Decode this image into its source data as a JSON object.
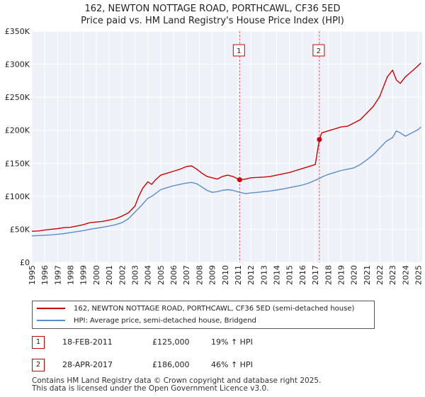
{
  "chart_data": {
    "type": "line",
    "title": "162, NEWTON NOTTAGE ROAD, PORTHCAWL, CF36 5ED",
    "subtitle": "Price paid vs. HM Land Registry's House Price Index (HPI)",
    "xlabel": "",
    "ylabel": "",
    "xlim": [
      1995,
      2025.3
    ],
    "ylim": [
      0,
      350000
    ],
    "x_ticks": [
      1995,
      1996,
      1997,
      1998,
      1999,
      2000,
      2001,
      2002,
      2003,
      2004,
      2005,
      2006,
      2007,
      2008,
      2009,
      2010,
      2011,
      2012,
      2013,
      2014,
      2015,
      2016,
      2017,
      2018,
      2019,
      2020,
      2021,
      2022,
      2023,
      2024,
      2025
    ],
    "x_tick_labels": [
      "1995",
      "1996",
      "1997",
      "1998",
      "1999",
      "2000",
      "2001",
      "2002",
      "2003",
      "2004",
      "2005",
      "2006",
      "2007",
      "2008",
      "2009",
      "2010",
      "2011",
      "2012",
      "2013",
      "2014",
      "2015",
      "2016",
      "2017",
      "2018",
      "2019",
      "2020",
      "2021",
      "2022",
      "2023",
      "2024",
      "2025"
    ],
    "y_ticks": [
      0,
      50000,
      100000,
      150000,
      200000,
      250000,
      300000,
      350000
    ],
    "y_tick_labels": [
      "£0",
      "£50K",
      "£100K",
      "£150K",
      "£200K",
      "£250K",
      "£300K",
      "£350K"
    ],
    "grid": true,
    "series": [
      {
        "name": "162, NEWTON NOTTAGE ROAD, PORTHCAWL, CF36 5ED (semi-detached house)",
        "color": "#cc0000",
        "x": [
          1995,
          1995.5,
          1996,
          1996.5,
          1997,
          1997.5,
          1998,
          1998.5,
          1999,
          1999.5,
          2000,
          2000.5,
          2001,
          2001.5,
          2002,
          2002.5,
          2003,
          2003.3,
          2003.6,
          2004,
          2004.3,
          2004.6,
          2005,
          2005.5,
          2006,
          2006.5,
          2007,
          2007.4,
          2007.8,
          2008.2,
          2008.6,
          2009,
          2009.4,
          2009.8,
          2010.2,
          2010.6,
          2011.13,
          2011.6,
          2012,
          2012.5,
          2013,
          2013.5,
          2014,
          2014.5,
          2015,
          2015.5,
          2016,
          2016.5,
          2017.0,
          2017.32,
          2017.5,
          2018,
          2018.5,
          2019,
          2019.5,
          2020,
          2020.5,
          2021,
          2021.5,
          2022,
          2022.3,
          2022.6,
          2023,
          2023.3,
          2023.6,
          2024,
          2024.3,
          2024.6,
          2025,
          2025.2
        ],
        "y": [
          47000,
          47500,
          49000,
          50000,
          51000,
          52500,
          53000,
          55000,
          57000,
          60000,
          61000,
          62000,
          64000,
          66000,
          70000,
          75000,
          85000,
          100000,
          112000,
          122000,
          118000,
          125000,
          132000,
          135000,
          138000,
          141000,
          145000,
          146000,
          141000,
          135000,
          130000,
          128000,
          126000,
          130000,
          132000,
          130000,
          125000,
          126000,
          128000,
          128500,
          129000,
          130000,
          132000,
          134000,
          136000,
          139000,
          142000,
          145000,
          148000,
          186000,
          196000,
          199000,
          202000,
          205000,
          206000,
          211000,
          216000,
          226000,
          236000,
          251000,
          266000,
          281000,
          291000,
          276000,
          271000,
          281000,
          286000,
          291000,
          298000,
          302000
        ]
      },
      {
        "name": "HPI: Average price, semi-detached house, Bridgend",
        "color": "#5b8dc9",
        "x": [
          1995,
          1995.5,
          1996,
          1996.5,
          1997,
          1997.5,
          1998,
          1998.5,
          1999,
          1999.5,
          2000,
          2000.5,
          2001,
          2001.5,
          2002,
          2002.5,
          2003,
          2003.5,
          2004,
          2004.3,
          2004.6,
          2005,
          2005.5,
          2006,
          2006.5,
          2007,
          2007.4,
          2007.8,
          2008.2,
          2008.6,
          2009,
          2009.4,
          2009.8,
          2010.2,
          2010.6,
          2011.13,
          2011.6,
          2012,
          2012.5,
          2013,
          2013.5,
          2014,
          2014.5,
          2015,
          2015.5,
          2016,
          2016.5,
          2017.32,
          2017.6,
          2018,
          2018.5,
          2019,
          2019.5,
          2020,
          2020.5,
          2021,
          2021.5,
          2022,
          2022.5,
          2023,
          2023.3,
          2023.6,
          2024,
          2024.5,
          2025,
          2025.2
        ],
        "y": [
          40000,
          40500,
          41000,
          41500,
          42500,
          43500,
          45000,
          46500,
          48000,
          50000,
          51500,
          53000,
          55000,
          57000,
          60000,
          66000,
          76000,
          86000,
          97000,
          100000,
          104000,
          110000,
          113000,
          116000,
          118000,
          120000,
          121000,
          119000,
          114000,
          109000,
          106000,
          107000,
          109000,
          110000,
          109000,
          106000,
          104000,
          105000,
          106000,
          107000,
          108000,
          109500,
          111000,
          113000,
          115000,
          117000,
          120000,
          127000,
          130000,
          133000,
          136000,
          139000,
          141000,
          143000,
          148000,
          155000,
          163000,
          173000,
          183000,
          189000,
          199000,
          196000,
          191000,
          196000,
          201000,
          205000
        ]
      }
    ],
    "annotations": [
      {
        "label": "1",
        "x": 2011.13,
        "y": 125000
      },
      {
        "label": "2",
        "x": 2017.32,
        "y": 186000
      }
    ]
  },
  "legend": {
    "items": [
      {
        "label": "162, NEWTON NOTTAGE ROAD, PORTHCAWL, CF36 5ED (semi-detached house)",
        "color": "#cc0000"
      },
      {
        "label": "HPI: Average price, semi-detached house, Bridgend",
        "color": "#5b8dc9"
      }
    ]
  },
  "sales": [
    {
      "num": "1",
      "date": "18-FEB-2011",
      "price": "£125,000",
      "hpi": "19% ↑ HPI"
    },
    {
      "num": "2",
      "date": "28-APR-2017",
      "price": "£186,000",
      "hpi": "46% ↑ HPI"
    }
  ],
  "footer": {
    "line1": "Contains HM Land Registry data © Crown copyright and database right 2025.",
    "line2": "This data is licensed under the Open Government Licence v3.0."
  }
}
